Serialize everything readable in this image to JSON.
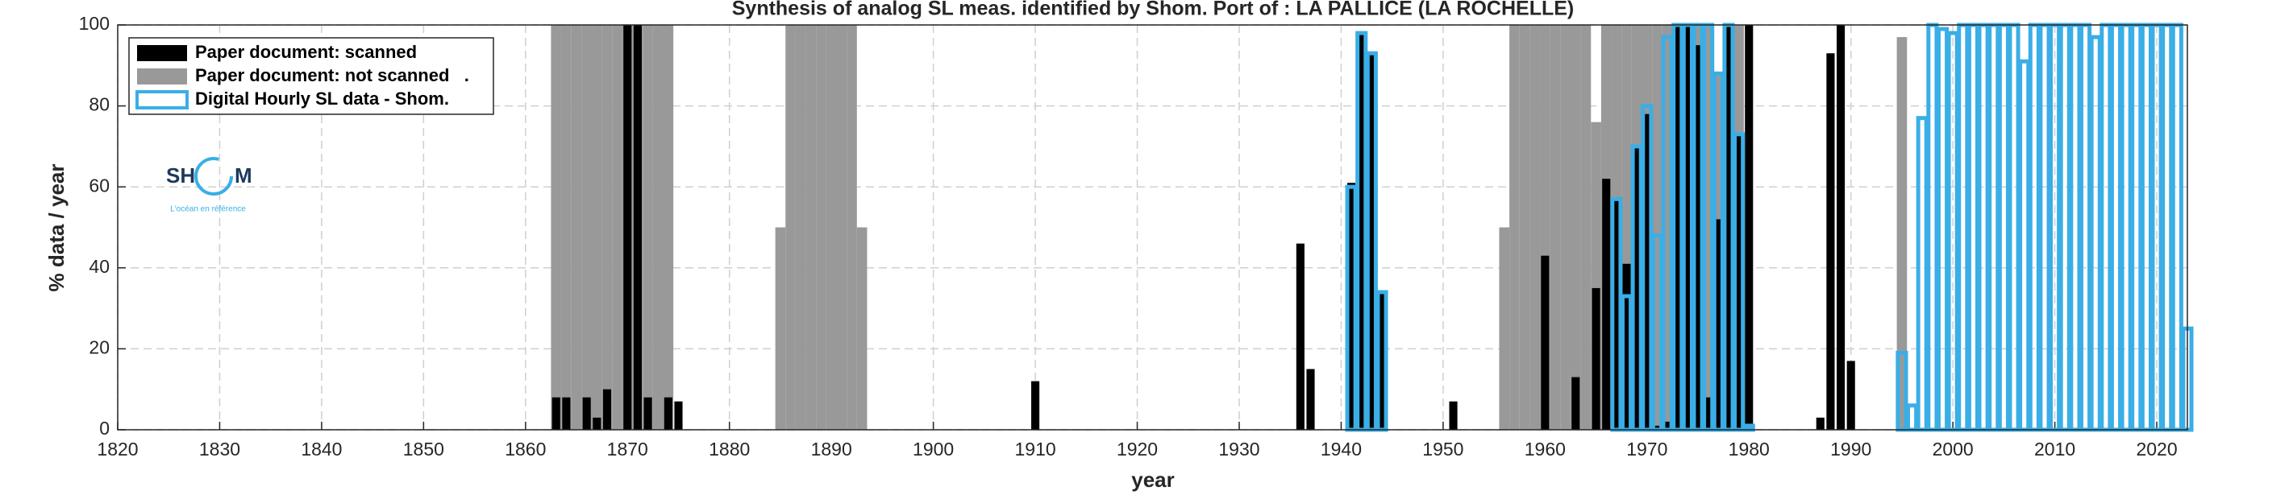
{
  "chart_data": {
    "type": "bar",
    "title": "Synthesis of analog SL meas. identified by Shom. Port of : LA PALLICE (LA ROCHELLE)",
    "xlabel": "year",
    "ylabel": "% data / year",
    "xlim": [
      1820,
      2023
    ],
    "ylim": [
      0,
      100
    ],
    "xticks": [
      1820,
      1830,
      1840,
      1850,
      1860,
      1870,
      1880,
      1890,
      1900,
      1910,
      1920,
      1930,
      1940,
      1950,
      1960,
      1970,
      1980,
      1990,
      2000,
      2010,
      2020
    ],
    "yticks": [
      0,
      20,
      40,
      60,
      80,
      100
    ],
    "grid": true,
    "legend": "upper left",
    "logo": {
      "left": "SH",
      "right": "M",
      "tagline": "L'océan en référence"
    },
    "series": [
      {
        "name": "Paper document: not scanned   .",
        "color": "#999999",
        "style": "filled",
        "width": 1,
        "x": [
          1863,
          1864,
          1865,
          1866,
          1867,
          1868,
          1869,
          1870,
          1871,
          1872,
          1873,
          1874,
          1885,
          1886,
          1887,
          1888,
          1889,
          1890,
          1891,
          1892,
          1893,
          1956,
          1957,
          1958,
          1959,
          1960,
          1961,
          1962,
          1963,
          1964,
          1965,
          1966,
          1967,
          1968,
          1969,
          1970,
          1971,
          1972,
          1973,
          1974,
          1975,
          1976,
          1977,
          1978,
          1979,
          1995
        ],
        "values": [
          100,
          100,
          100,
          100,
          100,
          100,
          100,
          100,
          100,
          100,
          100,
          100,
          50,
          100,
          100,
          100,
          100,
          100,
          100,
          100,
          50,
          50,
          100,
          100,
          100,
          100,
          100,
          100,
          100,
          100,
          76,
          100,
          100,
          100,
          100,
          100,
          100,
          100,
          100,
          100,
          100,
          100,
          88,
          100,
          100,
          97
        ]
      },
      {
        "name": "Paper document: scanned",
        "color": "#000000",
        "style": "filled",
        "width": 0.8,
        "x": [
          1863,
          1864,
          1866,
          1867,
          1868,
          1870,
          1871,
          1872,
          1874,
          1875,
          1910,
          1936,
          1937,
          1941,
          1942,
          1943,
          1944,
          1951,
          1960,
          1963,
          1965,
          1966,
          1967,
          1968,
          1969,
          1970,
          1971,
          1972,
          1973,
          1974,
          1975,
          1976,
          1977,
          1978,
          1979,
          1980,
          1987,
          1988,
          1989,
          1990
        ],
        "values": [
          8,
          8,
          8,
          3,
          10,
          100,
          100,
          8,
          8,
          7,
          12,
          46,
          15,
          61,
          98,
          93,
          34,
          7,
          43,
          13,
          35,
          62,
          57,
          41,
          70,
          78,
          1,
          2,
          100,
          100,
          95,
          8,
          52,
          100,
          73,
          100,
          3,
          93,
          100,
          17
        ]
      },
      {
        "name": "Digital Hourly SL data - Shom.",
        "color": "#3aaee6",
        "style": "outline",
        "width": 0.8,
        "x": [
          1941,
          1942,
          1943,
          1944,
          1967,
          1968,
          1969,
          1970,
          1971,
          1972,
          1973,
          1974,
          1975,
          1976,
          1977,
          1978,
          1979,
          1980,
          1995,
          1996,
          1997,
          1998,
          1999,
          2000,
          2001,
          2002,
          2003,
          2004,
          2005,
          2006,
          2007,
          2008,
          2009,
          2010,
          2011,
          2012,
          2013,
          2014,
          2015,
          2016,
          2017,
          2018,
          2019,
          2020,
          2021,
          2022,
          2023
        ],
        "values": [
          60,
          98,
          93,
          34,
          57,
          33,
          70,
          80,
          48,
          97,
          100,
          100,
          100,
          100,
          88,
          100,
          73,
          1,
          19,
          6,
          77,
          100,
          99,
          98,
          100,
          100,
          100,
          100,
          100,
          100,
          91,
          100,
          100,
          100,
          100,
          100,
          100,
          97,
          100,
          100,
          100,
          100,
          100,
          100,
          100,
          100,
          25
        ]
      }
    ]
  }
}
